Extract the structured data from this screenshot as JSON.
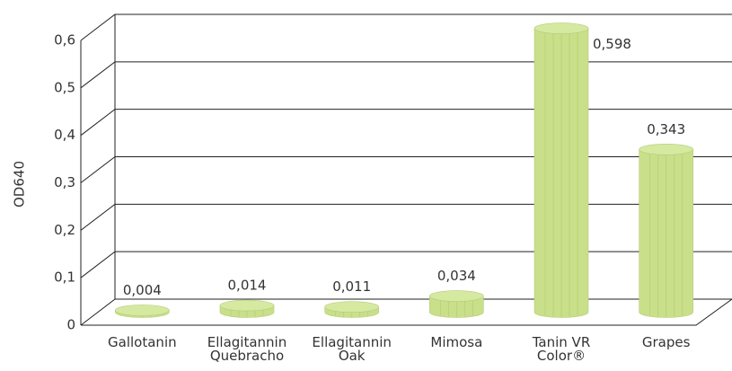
{
  "chart_data": {
    "type": "bar3d",
    "y_label": "OD640",
    "categories": [
      "Gallotanin",
      "Ellagitannin Quebracho",
      "Ellagitannin Oak",
      "Mimosa",
      "Tanin VR Color®",
      "Grapes"
    ],
    "values": [
      0.004,
      0.014,
      0.011,
      0.034,
      0.598,
      0.343
    ],
    "value_labels": [
      "0,004",
      "0,014",
      "0,011",
      "0,034",
      "0,598",
      "0,343"
    ],
    "color": "#c9df8a",
    "ylim": [
      0,
      0.6
    ],
    "yticks": [
      0,
      {
        "value": 0.1,
        "label": "0,1"
      },
      {
        "value": 0.2,
        "label": "0,2"
      },
      {
        "value": 0.3,
        "label": "0,3"
      },
      {
        "value": 0.4,
        "label": "0,4"
      },
      {
        "value": 0.5,
        "label": "0,5"
      },
      {
        "value": 0.6,
        "label": "0,6"
      }
    ],
    "grid": true
  }
}
